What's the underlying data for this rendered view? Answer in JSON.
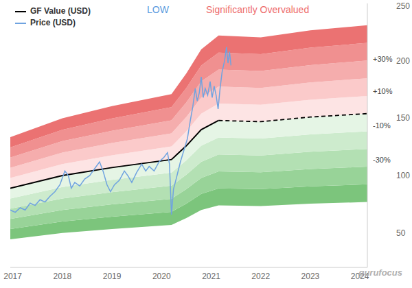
{
  "chart_data": {
    "type": "line",
    "series": [
      {
        "name": "GF Value (USD)",
        "color": "#000000",
        "line_style": "solid",
        "x": [
          2016.95,
          2018.0,
          2019.0,
          2020.2,
          2020.5,
          2020.8,
          2021.15
        ],
        "values": [
          89,
          100,
          107,
          114,
          126,
          140,
          148
        ]
      },
      {
        "color": "#000000",
        "line_style": "dashed",
        "x": [
          2021.15,
          2022.0,
          2023.0,
          2024.15
        ],
        "values": [
          148,
          147,
          151,
          154
        ]
      },
      {
        "name": "Price (USD)",
        "color": "#6fa3e0",
        "line_style": "solid",
        "x": [
          2016.95,
          2017.05,
          2017.15,
          2017.25,
          2017.35,
          2017.45,
          2017.55,
          2017.65,
          2017.75,
          2017.85,
          2017.95,
          2018.05,
          2018.12,
          2018.18,
          2018.25,
          2018.35,
          2018.45,
          2018.55,
          2018.65,
          2018.75,
          2018.82,
          2018.9,
          2018.97,
          2019.05,
          2019.15,
          2019.25,
          2019.32,
          2019.4,
          2019.5,
          2019.6,
          2019.68,
          2019.75,
          2019.85,
          2019.95,
          2020.05,
          2020.12,
          2020.16,
          2020.2,
          2020.24,
          2020.3,
          2020.38,
          2020.45,
          2020.52,
          2020.58,
          2020.63,
          2020.68,
          2020.72,
          2020.76,
          2020.8,
          2020.84,
          2020.88,
          2020.93,
          2020.98,
          2021.02,
          2021.06,
          2021.1,
          2021.14,
          2021.18,
          2021.22,
          2021.27,
          2021.31,
          2021.34,
          2021.37,
          2021.4
        ],
        "values": [
          70,
          68,
          72,
          70,
          76,
          74,
          79,
          77,
          82,
          86,
          92,
          104,
          100,
          89,
          94,
          91,
          97,
          100,
          106,
          112,
          104,
          92,
          86,
          92,
          96,
          104,
          100,
          94,
          103,
          110,
          104,
          108,
          104,
          112,
          116,
          120,
          110,
          66,
          88,
          98,
          112,
          122,
          132,
          148,
          160,
          176,
          165,
          172,
          186,
          168,
          176,
          170,
          182,
          168,
          178,
          170,
          158,
          176,
          190,
          200,
          212,
          198,
          208,
          196
        ]
      }
    ],
    "bands": {
      "x": [
        2016.95,
        2018.0,
        2019.0,
        2020.2,
        2020.5,
        2020.8,
        2021.15,
        2022.0,
        2023.0,
        2024.15
      ],
      "bounds": [
        [
          44.5,
          50,
          53.5,
          57,
          63,
          70,
          74,
          73.5,
          75.5,
          77
        ],
        [
          53.4,
          60,
          64.2,
          68.4,
          75.6,
          84,
          88.8,
          88.2,
          90.6,
          92.4
        ],
        [
          62.3,
          70,
          74.9,
          79.8,
          88.2,
          98,
          103.6,
          102.9,
          105.7,
          107.8
        ],
        [
          71.2,
          80,
          85.6,
          91.2,
          100.8,
          112,
          118.4,
          117.6,
          120.8,
          123.2
        ],
        [
          80.1,
          90,
          96.3,
          102.6,
          113.4,
          126,
          133.2,
          132.3,
          135.9,
          138.6
        ],
        [
          89,
          100,
          107,
          114,
          126,
          140,
          148,
          147,
          151,
          154
        ],
        [
          97.9,
          110,
          117.7,
          125.4,
          138.6,
          154,
          162.8,
          161.7,
          166.1,
          169.4
        ],
        [
          106.8,
          120,
          128.4,
          136.8,
          151.2,
          168,
          177.6,
          176.4,
          181.2,
          184.8
        ],
        [
          115.7,
          130,
          139.1,
          148.2,
          163.8,
          182,
          192.4,
          191.1,
          196.3,
          200.2
        ],
        [
          124.6,
          140,
          149.8,
          159.6,
          176.4,
          196,
          207.2,
          205.8,
          211.4,
          215.6
        ],
        [
          133.5,
          150,
          160.5,
          171,
          189,
          210,
          222,
          220.5,
          226.5,
          231
        ]
      ],
      "colors": [
        "#7cc57c",
        "#98d398",
        "#b3e0b3",
        "#cdebcd",
        "#e5f5e5",
        "#fde4e4",
        "#fbcaca",
        "#f5adad",
        "#f09090",
        "#eb7272"
      ],
      "labels": [
        "+30%",
        "+10%",
        "-10%",
        "-30%"
      ]
    },
    "annotations": [
      {
        "text": "LOW",
        "color": "#5b9be0"
      },
      {
        "text": "Significantly Overvalued",
        "color": "#ee6b6b"
      }
    ],
    "watermark": "gurufocus",
    "xlim": [
      2016.95,
      2024.15
    ],
    "xticks": [
      2017,
      2018,
      2019,
      2020,
      2021,
      2022,
      2023,
      2024
    ],
    "ylim": [
      20,
      250
    ],
    "yticks": [
      50,
      100,
      150,
      200,
      250
    ],
    "grid": false,
    "legend": "upper left"
  }
}
